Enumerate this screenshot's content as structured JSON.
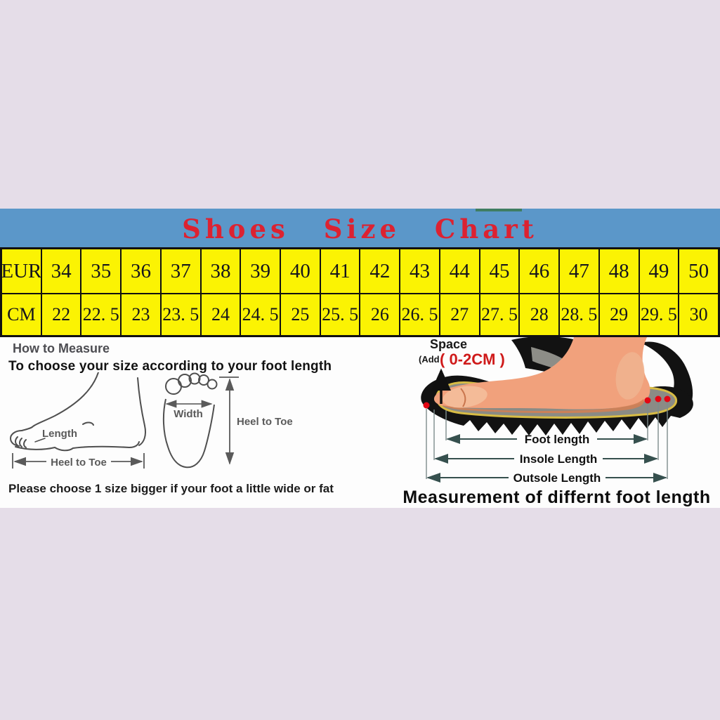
{
  "header": {
    "title": "Shoes Size Chart",
    "bg_color": "#5b97c9",
    "title_color": "#dc2231"
  },
  "table": {
    "row1_label": "EUR",
    "row2_label": "CM",
    "eur_sizes": [
      "34",
      "35",
      "36",
      "37",
      "38",
      "39",
      "40",
      "41",
      "42",
      "43",
      "44",
      "45",
      "46",
      "47",
      "48",
      "49",
      "50"
    ],
    "cm_sizes": [
      "22",
      "22. 5",
      "23",
      "23. 5",
      "24",
      "24. 5",
      "25",
      "25. 5",
      "26",
      "26. 5",
      "27",
      "27. 5",
      "28",
      "28. 5",
      "29",
      "29. 5",
      "30"
    ],
    "cell_color": "#fbf303"
  },
  "chart_data": {
    "type": "table",
    "title": "Shoes Size Chart",
    "rows": [
      {
        "label": "EUR",
        "values": [
          34,
          35,
          36,
          37,
          38,
          39,
          40,
          41,
          42,
          43,
          44,
          45,
          46,
          47,
          48,
          49,
          50
        ]
      },
      {
        "label": "CM",
        "values": [
          22,
          22.5,
          23,
          23.5,
          24,
          24.5,
          25,
          25.5,
          26,
          26.5,
          27,
          27.5,
          28,
          28.5,
          29,
          29.5,
          30
        ]
      }
    ]
  },
  "measure_guide": {
    "heading": "How to Measure",
    "instruction": "To choose your size according to your foot length",
    "side_foot": {
      "length_label": "Length",
      "heel_to_toe_label": "Heel to Toe"
    },
    "top_foot": {
      "width_label": "Width",
      "heel_to_toe_label": "Heel to Toe"
    },
    "note": "Please choose 1 size bigger if your foot a little wide or fat"
  },
  "foot_length_diagram": {
    "space_label": "Space",
    "add_label": "(Add",
    "add_value": "( 0-2CM )",
    "foot_length_label": "Foot length",
    "insole_length_label": "Insole Length",
    "outsole_length_label": "Outsole Length",
    "caption": "Measurement of differnt foot length"
  }
}
